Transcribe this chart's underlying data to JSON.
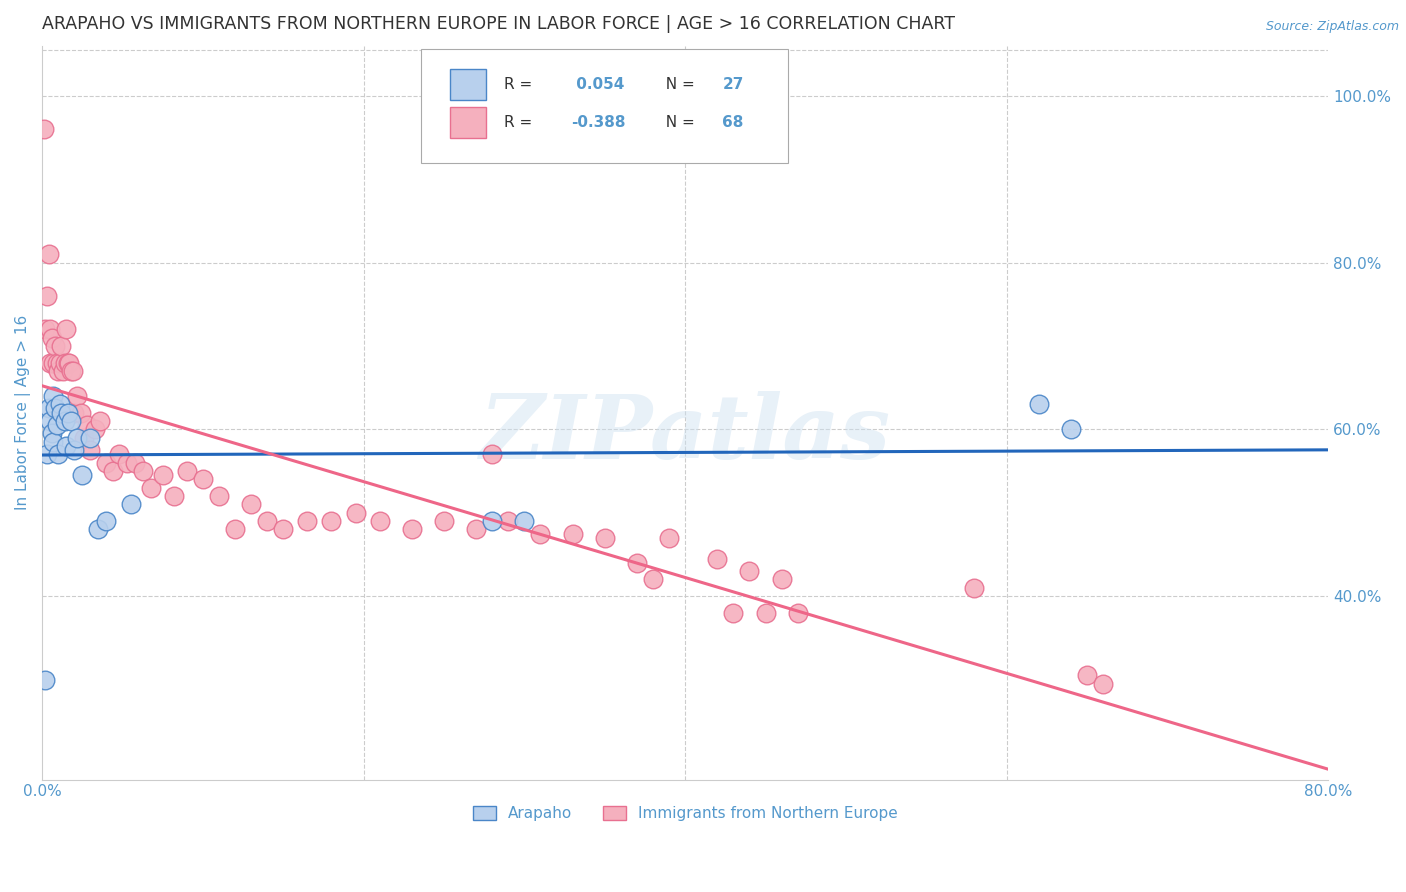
{
  "title": "ARAPAHO VS IMMIGRANTS FROM NORTHERN EUROPE IN LABOR FORCE | AGE > 16 CORRELATION CHART",
  "source": "Source: ZipAtlas.com",
  "ylabel": "In Labor Force | Age > 16",
  "xmin": 0.0,
  "xmax": 0.8,
  "ymin": 0.18,
  "ymax": 1.06,
  "yticks": [
    0.4,
    0.6,
    0.8,
    1.0
  ],
  "ytick_labels": [
    "40.0%",
    "60.0%",
    "80.0%",
    "100.0%"
  ],
  "blue_R": 0.054,
  "blue_N": 27,
  "pink_R": -0.388,
  "pink_N": 68,
  "blue_label": "Arapaho",
  "pink_label": "Immigrants from Northern Europe",
  "blue_color": "#b8d0ed",
  "pink_color": "#f5b0be",
  "blue_edge_color": "#4a86c8",
  "pink_edge_color": "#e87090",
  "blue_line_color": "#2266bb",
  "pink_line_color": "#ee6688",
  "axis_label_color": "#5599cc",
  "title_color": "#333333",
  "grid_color": "#cccccc",
  "legend_text_color": "#333333",
  "legend_value_color": "#5599cc",
  "background_color": "#ffffff",
  "blue_x": [
    0.002,
    0.003,
    0.004,
    0.005,
    0.006,
    0.007,
    0.007,
    0.008,
    0.009,
    0.01,
    0.011,
    0.012,
    0.014,
    0.015,
    0.016,
    0.018,
    0.02,
    0.022,
    0.025,
    0.03,
    0.035,
    0.04,
    0.055,
    0.28,
    0.3,
    0.62,
    0.64
  ],
  "blue_y": [
    0.3,
    0.57,
    0.625,
    0.61,
    0.595,
    0.585,
    0.64,
    0.625,
    0.605,
    0.57,
    0.63,
    0.62,
    0.61,
    0.58,
    0.62,
    0.61,
    0.575,
    0.59,
    0.545,
    0.59,
    0.48,
    0.49,
    0.51,
    0.49,
    0.49,
    0.63,
    0.6
  ],
  "pink_x": [
    0.001,
    0.002,
    0.003,
    0.004,
    0.005,
    0.005,
    0.006,
    0.007,
    0.008,
    0.009,
    0.01,
    0.011,
    0.012,
    0.013,
    0.014,
    0.015,
    0.016,
    0.017,
    0.018,
    0.019,
    0.02,
    0.022,
    0.024,
    0.026,
    0.028,
    0.03,
    0.033,
    0.036,
    0.04,
    0.044,
    0.048,
    0.053,
    0.058,
    0.063,
    0.068,
    0.075,
    0.082,
    0.09,
    0.1,
    0.11,
    0.12,
    0.13,
    0.14,
    0.15,
    0.165,
    0.18,
    0.195,
    0.21,
    0.23,
    0.25,
    0.27,
    0.29,
    0.31,
    0.33,
    0.35,
    0.37,
    0.39,
    0.42,
    0.44,
    0.46,
    0.43,
    0.45,
    0.47,
    0.28,
    0.38,
    0.58,
    0.65,
    0.66
  ],
  "pink_y": [
    0.96,
    0.72,
    0.76,
    0.81,
    0.72,
    0.68,
    0.71,
    0.68,
    0.7,
    0.68,
    0.67,
    0.68,
    0.7,
    0.67,
    0.68,
    0.72,
    0.68,
    0.68,
    0.67,
    0.67,
    0.62,
    0.64,
    0.62,
    0.59,
    0.605,
    0.575,
    0.6,
    0.61,
    0.56,
    0.55,
    0.57,
    0.56,
    0.56,
    0.55,
    0.53,
    0.545,
    0.52,
    0.55,
    0.54,
    0.52,
    0.48,
    0.51,
    0.49,
    0.48,
    0.49,
    0.49,
    0.5,
    0.49,
    0.48,
    0.49,
    0.48,
    0.49,
    0.475,
    0.475,
    0.47,
    0.44,
    0.47,
    0.445,
    0.43,
    0.42,
    0.38,
    0.38,
    0.38,
    0.57,
    0.42,
    0.41,
    0.305,
    0.295
  ],
  "watermark_text": "ZIPatlas",
  "figsize": [
    14.06,
    8.92
  ],
  "dpi": 100
}
